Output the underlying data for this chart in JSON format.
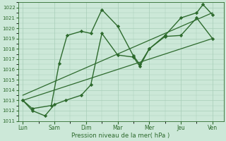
{
  "x_labels": [
    "Lun",
    "Sam",
    "Dim",
    "Mar",
    "Mer",
    "Jeu",
    "Ven"
  ],
  "ylim": [
    1011,
    1022.5
  ],
  "yticks": [
    1011,
    1012,
    1013,
    1014,
    1015,
    1016,
    1017,
    1018,
    1019,
    1020,
    1021,
    1022
  ],
  "xlabel": "Pression niveau de la mer( hPa )",
  "line_color": "#2d6a2d",
  "bg_color": "#cce8d8",
  "grid_color": "#a8cdb8",
  "marker": "D",
  "marker_size": 2.2,
  "line_width": 1.0,
  "line1_x": [
    0,
    0.3,
    0.9,
    1.15,
    1.4,
    1.85,
    2.15,
    2.5,
    3.0,
    3.5,
    3.7,
    4.0,
    4.5,
    5.0,
    5.5,
    5.7,
    6.0
  ],
  "line1_y": [
    1013.0,
    1012.2,
    1012.5,
    1016.6,
    1019.3,
    1019.7,
    1019.5,
    1021.8,
    1020.2,
    1017.3,
    1016.5,
    1018.0,
    1019.3,
    1021.0,
    1021.5,
    1022.3,
    1021.3
  ],
  "line2_x": [
    0,
    0.3,
    0.7,
    1.0,
    1.35,
    1.85,
    2.15,
    2.5,
    3.0,
    3.5,
    3.7,
    4.0,
    4.5,
    5.0,
    5.5,
    6.0
  ],
  "line2_y": [
    1013.0,
    1012.0,
    1011.5,
    1012.6,
    1013.0,
    1013.5,
    1014.5,
    1019.5,
    1017.4,
    1017.2,
    1016.3,
    1018.0,
    1019.2,
    1019.3,
    1021.0,
    1019.0
  ],
  "line3_x": [
    0,
    6.0
  ],
  "line3_y": [
    1013.0,
    1019.0
  ],
  "line4_x": [
    0,
    6.0
  ],
  "line4_y": [
    1013.5,
    1021.5
  ],
  "xlim_left": -0.15,
  "xlim_right": 6.35
}
